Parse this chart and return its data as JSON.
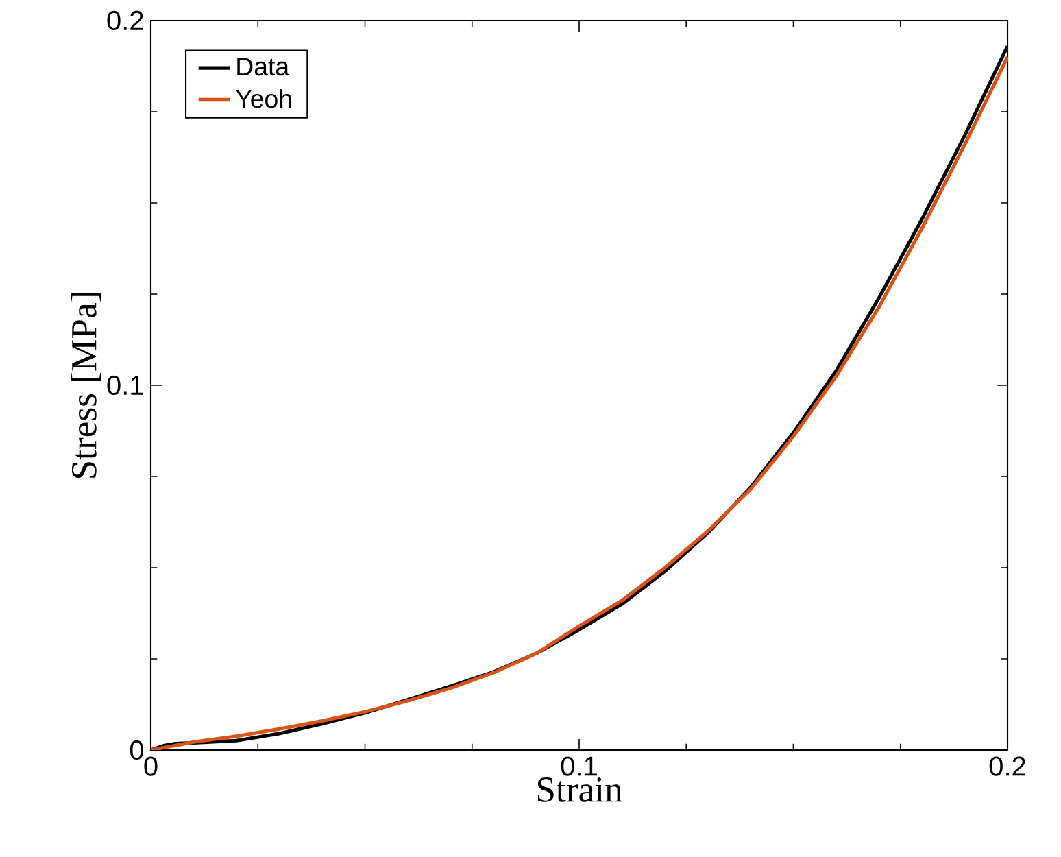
{
  "chart_data": {
    "type": "line",
    "xlabel": "Strain",
    "ylabel": "Stress [MPa]",
    "xlim": [
      0,
      0.2
    ],
    "ylim": [
      0,
      0.2
    ],
    "xticks": [
      0,
      0.1,
      0.2
    ],
    "yticks": [
      0,
      0.1,
      0.2
    ],
    "legend": "top left",
    "grid": false,
    "marker": "none",
    "line_style": "solid",
    "series": [
      {
        "name": "Data",
        "color": "#000000",
        "x": [
          0,
          0.003,
          0.006,
          0.01,
          0.02,
          0.03,
          0.04,
          0.05,
          0.06,
          0.07,
          0.08,
          0.09,
          0.1,
          0.11,
          0.12,
          0.13,
          0.14,
          0.15,
          0.16,
          0.17,
          0.18,
          0.19,
          0.2
        ],
        "values": [
          0,
          0.0012,
          0.0018,
          0.002,
          0.0026,
          0.0045,
          0.0072,
          0.0102,
          0.0138,
          0.0175,
          0.0214,
          0.0265,
          0.033,
          0.04,
          0.049,
          0.0595,
          0.072,
          0.087,
          0.104,
          0.124,
          0.1455,
          0.1685,
          0.193
        ]
      },
      {
        "name": "Yeoh",
        "color": "#d95319",
        "x": [
          0,
          0.01,
          0.02,
          0.03,
          0.04,
          0.05,
          0.06,
          0.07,
          0.08,
          0.09,
          0.1,
          0.11,
          0.12,
          0.13,
          0.14,
          0.15,
          0.16,
          0.17,
          0.18,
          0.19,
          0.2
        ],
        "values": [
          0,
          0.0022,
          0.0038,
          0.0058,
          0.008,
          0.0105,
          0.0135,
          0.017,
          0.0212,
          0.0265,
          0.034,
          0.041,
          0.05,
          0.06,
          0.0715,
          0.086,
          0.1025,
          0.1215,
          0.143,
          0.166,
          0.19
        ]
      }
    ]
  }
}
